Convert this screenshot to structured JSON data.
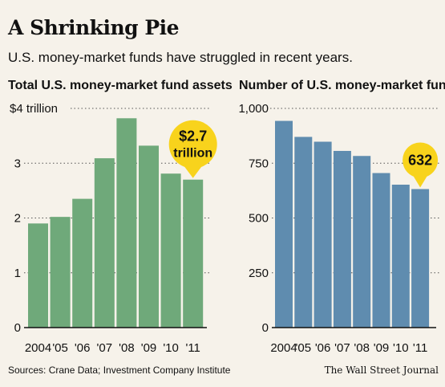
{
  "title": "A Shrinking Pie",
  "subtitle": "U.S. money-market funds have struggled in recent years.",
  "source": "Sources: Crane Data; Investment Company Institute",
  "credit": "The Wall Street Journal",
  "colors": {
    "assets_bar": "#6fa97a",
    "funds_bar": "#5f8caf",
    "callout": "#f8d31c"
  },
  "chart_data": [
    {
      "type": "bar",
      "title": "Total U.S. money-market fund assets",
      "categories": [
        "2004",
        "'05",
        "'06",
        "'07",
        "'08",
        "'09",
        "'10",
        "'11"
      ],
      "values": [
        1.9,
        2.02,
        2.35,
        3.09,
        3.82,
        3.32,
        2.81,
        2.7
      ],
      "ylim": [
        0,
        4
      ],
      "yticks": [
        0,
        1,
        2,
        3,
        4
      ],
      "yticklabels": [
        "0",
        "1",
        "2",
        "3",
        "$4 trillion"
      ],
      "grid": true,
      "annotation": {
        "index": 7,
        "lines": [
          "$2.7",
          "trillion"
        ]
      }
    },
    {
      "type": "bar",
      "title": "Number of U.S. money-market funds",
      "categories": [
        "2004",
        "'05",
        "'06",
        "'07",
        "'08",
        "'09",
        "'10",
        "'11"
      ],
      "values": [
        943,
        870,
        848,
        806,
        783,
        705,
        652,
        632
      ],
      "ylim": [
        0,
        1000
      ],
      "yticks": [
        0,
        250,
        500,
        750,
        1000
      ],
      "yticklabels": [
        "0",
        "250",
        "500",
        "750",
        "1,000"
      ],
      "grid": true,
      "annotation": {
        "index": 7,
        "lines": [
          "632"
        ]
      }
    }
  ]
}
